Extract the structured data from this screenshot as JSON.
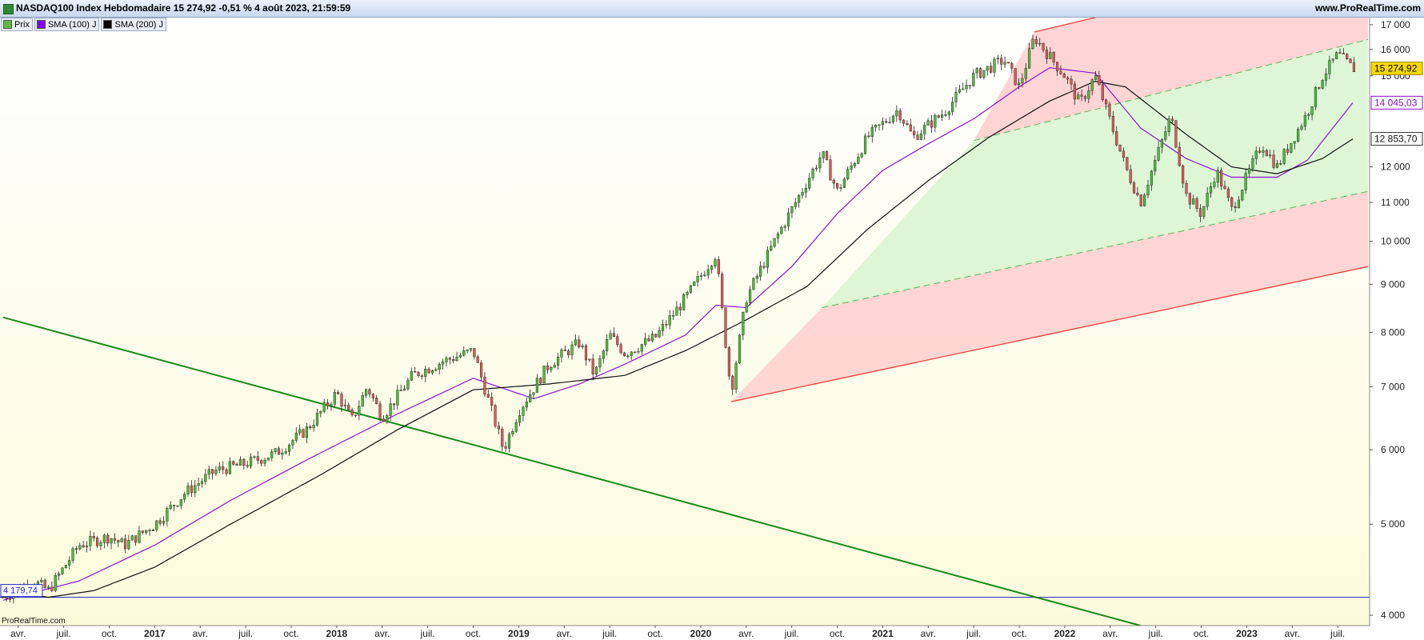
{
  "header": {
    "title": "NASDAQ100 Index Hebdomadaire 15 274,92 -0,51 % 4 août 2023, 21:59:59",
    "site": "www.ProRealTime.com",
    "watermark": "ProRealTime.com"
  },
  "legend": [
    {
      "label": "Prix",
      "color": "#5dbb3f"
    },
    {
      "label": "SMA (100) J",
      "color": "#8000ff"
    },
    {
      "label": "SMA (200) J",
      "color": "#000000"
    }
  ],
  "colors": {
    "bg_top": "#ffffff",
    "bg_bottom": "#fbfbdc",
    "up": "#4cbe3c",
    "down": "#e05858",
    "sma100": "#8c14d2",
    "sma200": "#111111",
    "trendline": "#1a8a1a",
    "channel_upper": "#e83c3c",
    "channel_lower": "#e83c3c",
    "hline": "#2222cc",
    "price_label": "#f5d800"
  },
  "chart_data": {
    "type": "candlestick",
    "scale": "log",
    "ylim": [
      3900,
      17300
    ],
    "y_ticks": [
      4000,
      5000,
      6000,
      7000,
      8000,
      9000,
      10000,
      11000,
      12000,
      15000,
      16000,
      17000
    ],
    "y_tick_labels": [
      "4 000",
      "5 000",
      "6 000",
      "7 000",
      "8 000",
      "9 000",
      "10 000",
      "11 000",
      "12 000",
      "15 000",
      "16 000",
      "17 000"
    ],
    "x_labels": [
      "avr.",
      "juil.",
      "oct.",
      "2017",
      "avr.",
      "juil.",
      "oct.",
      "2018",
      "avr.",
      "juil.",
      "oct.",
      "2019",
      "avr.",
      "juil.",
      "oct.",
      "2020",
      "avr.",
      "juil.",
      "oct.",
      "2021",
      "avr.",
      "juil.",
      "oct.",
      "2022",
      "avr.",
      "juil.",
      "oct.",
      "2023",
      "avr.",
      "juil."
    ],
    "x_range": [
      "2016-03",
      "2023-09"
    ],
    "series": [
      {
        "name": "Prix",
        "type": "candlestick",
        "anchors": [
          [
            "2016-03",
            4180
          ],
          [
            "2016-05",
            4350
          ],
          [
            "2016-06",
            4250
          ],
          [
            "2016-08",
            4750
          ],
          [
            "2016-10",
            4850
          ],
          [
            "2016-11",
            4750
          ],
          [
            "2017-01",
            5000
          ],
          [
            "2017-03",
            5400
          ],
          [
            "2017-05",
            5700
          ],
          [
            "2017-07",
            5800
          ],
          [
            "2017-09",
            5950
          ],
          [
            "2017-11",
            6300
          ],
          [
            "2018-01",
            6900
          ],
          [
            "2018-02",
            6450
          ],
          [
            "2018-03",
            7000
          ],
          [
            "2018-04",
            6500
          ],
          [
            "2018-06",
            7200
          ],
          [
            "2018-08",
            7450
          ],
          [
            "2018-10",
            7650
          ],
          [
            "2018-12",
            6000
          ],
          [
            "2019-01",
            6600
          ],
          [
            "2019-03",
            7400
          ],
          [
            "2019-05",
            7800
          ],
          [
            "2019-06",
            7200
          ],
          [
            "2019-07",
            7950
          ],
          [
            "2019-08",
            7600
          ],
          [
            "2019-10",
            7900
          ],
          [
            "2019-12",
            8700
          ],
          [
            "2020-02",
            9700
          ],
          [
            "2020-03",
            6900
          ],
          [
            "2020-04",
            8700
          ],
          [
            "2020-06",
            10100
          ],
          [
            "2020-09",
            12400
          ],
          [
            "2020-10",
            11300
          ],
          [
            "2020-12",
            12900
          ],
          [
            "2021-02",
            13800
          ],
          [
            "2021-03",
            12900
          ],
          [
            "2021-05",
            13700
          ],
          [
            "2021-07",
            15000
          ],
          [
            "2021-09",
            15600
          ],
          [
            "2021-10",
            14600
          ],
          [
            "2021-11",
            16500
          ],
          [
            "2022-01",
            15000
          ],
          [
            "2022-02",
            14000
          ],
          [
            "2022-03",
            15000
          ],
          [
            "2022-05",
            12000
          ],
          [
            "2022-06",
            11000
          ],
          [
            "2022-08",
            13600
          ],
          [
            "2022-09",
            11200
          ],
          [
            "2022-10",
            10700
          ],
          [
            "2022-11",
            11900
          ],
          [
            "2022-12",
            10800
          ],
          [
            "2023-02",
            12700
          ],
          [
            "2023-03",
            12000
          ],
          [
            "2023-05",
            13700
          ],
          [
            "2023-06",
            15000
          ],
          [
            "2023-07",
            15800
          ],
          [
            "2023-08",
            15275
          ]
        ]
      },
      {
        "name": "SMA (100) J",
        "type": "line",
        "points": [
          [
            "2016-03",
            4150
          ],
          [
            "2016-08",
            4350
          ],
          [
            "2017-01",
            4750
          ],
          [
            "2017-06",
            5300
          ],
          [
            "2017-11",
            5850
          ],
          [
            "2018-05",
            6550
          ],
          [
            "2018-10",
            7150
          ],
          [
            "2019-02",
            6800
          ],
          [
            "2019-05",
            7050
          ],
          [
            "2019-08",
            7400
          ],
          [
            "2019-12",
            7950
          ],
          [
            "2020-02",
            8550
          ],
          [
            "2020-04",
            8500
          ],
          [
            "2020-07",
            9400
          ],
          [
            "2020-10",
            10700
          ],
          [
            "2021-01",
            11900
          ],
          [
            "2021-04",
            12700
          ],
          [
            "2021-07",
            13500
          ],
          [
            "2021-10",
            14600
          ],
          [
            "2021-12",
            15300
          ],
          [
            "2022-03",
            15100
          ],
          [
            "2022-06",
            13200
          ],
          [
            "2022-09",
            12250
          ],
          [
            "2022-12",
            11700
          ],
          [
            "2023-03",
            11700
          ],
          [
            "2023-05",
            12200
          ],
          [
            "2023-08",
            14045
          ]
        ]
      },
      {
        "name": "SMA (200) J",
        "type": "line",
        "points": [
          [
            "2016-03",
            4250
          ],
          [
            "2016-06",
            4180
          ],
          [
            "2016-09",
            4250
          ],
          [
            "2017-01",
            4500
          ],
          [
            "2017-06",
            5000
          ],
          [
            "2017-12",
            5650
          ],
          [
            "2018-05",
            6300
          ],
          [
            "2018-10",
            6950
          ],
          [
            "2019-03",
            7050
          ],
          [
            "2019-08",
            7200
          ],
          [
            "2019-12",
            7650
          ],
          [
            "2020-04",
            8250
          ],
          [
            "2020-08",
            8950
          ],
          [
            "2020-12",
            10300
          ],
          [
            "2021-04",
            11600
          ],
          [
            "2021-08",
            12900
          ],
          [
            "2021-12",
            14100
          ],
          [
            "2022-03",
            14800
          ],
          [
            "2022-05",
            14600
          ],
          [
            "2022-09",
            13000
          ],
          [
            "2022-12",
            12000
          ],
          [
            "2023-03",
            11800
          ],
          [
            "2023-06",
            12250
          ],
          [
            "2023-08",
            12853.7
          ]
        ]
      }
    ],
    "price_labels": [
      {
        "value": 15274.92,
        "text": "15 274,92",
        "style": "last"
      },
      {
        "value": 14045.03,
        "text": "14 045,03",
        "style": "sma100"
      },
      {
        "value": 12853.7,
        "text": "12 853,70",
        "style": "sma200"
      }
    ],
    "horizontal_line": {
      "value": 4179.74,
      "text": "4 179,74"
    },
    "trendline": {
      "p1": [
        "2016-03",
        8300
      ],
      "p2": [
        "2022-06",
        3900
      ]
    },
    "channel": {
      "upper": {
        "p1": [
          "2021-11",
          16700
        ],
        "p2": [
          "2022-03",
          17300
        ]
      },
      "mid_upper": {
        "p1": [
          "2021-07",
          12800
        ],
        "p2": [
          "2023-09",
          16400
        ]
      },
      "mid_lower": {
        "p1": [
          "2020-09",
          8500
        ],
        "p2": [
          "2023-09",
          11300
        ]
      },
      "lower": {
        "p1": [
          "2020-03",
          6750
        ],
        "p2": [
          "2023-09",
          9400
        ]
      },
      "red_fill_left": [
        [
          "2020-03",
          6750
        ],
        [
          "2020-09",
          8500
        ],
        [
          "2021-07",
          12800
        ],
        [
          "2021-11",
          16700
        ]
      ],
      "green_fill_left": [
        [
          "2020-09",
          8500
        ],
        [
          "2021-07",
          12800
        ]
      ]
    }
  }
}
